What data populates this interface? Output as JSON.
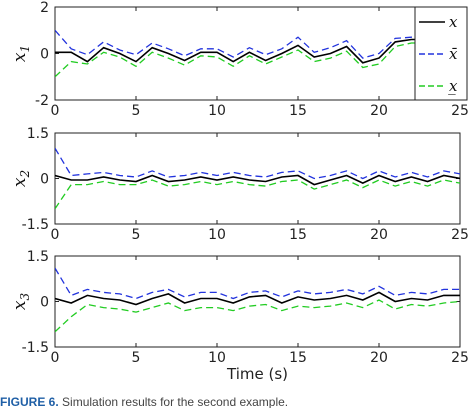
{
  "caption": {
    "label": "FIGURE 6.",
    "text": "Simulation results for the second example."
  },
  "colors": {
    "x": "#000000",
    "upper": "#2233dd",
    "lower": "#22cc22"
  },
  "chart_data": [
    {
      "type": "line",
      "ylabel": "x",
      "ylabel_sub": "1",
      "xlabel": "",
      "xlim": [
        0,
        25
      ],
      "ylim": [
        -2,
        2
      ],
      "xticks": [
        "0",
        "5",
        "10",
        "15",
        "20",
        "25"
      ],
      "yticks": [
        "-2",
        "0",
        "2"
      ],
      "x": [
        0,
        1,
        2,
        3,
        4,
        5,
        6,
        7,
        8,
        9,
        10,
        11,
        12,
        13,
        14,
        15,
        16,
        17,
        18,
        19,
        20,
        21,
        22,
        23,
        24,
        25
      ],
      "legend": {
        "position": "right",
        "entries": [
          "x",
          "x̄",
          "x̲"
        ]
      },
      "series": [
        {
          "name": "x",
          "color": "x",
          "dash": "solid",
          "values": [
            0.05,
            0.05,
            -0.35,
            0.25,
            0.0,
            -0.35,
            0.25,
            0.0,
            -0.3,
            0.05,
            0.05,
            -0.35,
            0.05,
            -0.3,
            0.0,
            0.35,
            -0.15,
            0.0,
            0.3,
            -0.4,
            -0.2,
            0.5,
            0.6,
            0.6,
            0.6,
            0.6
          ]
        },
        {
          "name": "x̄",
          "color": "upper",
          "dash": "dashed",
          "values": [
            1.0,
            0.2,
            -0.05,
            0.5,
            0.15,
            -0.05,
            0.45,
            0.2,
            -0.1,
            0.2,
            0.2,
            -0.15,
            0.25,
            -0.05,
            0.2,
            0.7,
            0.05,
            0.25,
            0.55,
            -0.2,
            0.0,
            0.65,
            0.7,
            0.7,
            0.7,
            0.7
          ]
        },
        {
          "name": "x̲",
          "color": "lower",
          "dash": "dashed",
          "values": [
            -1.0,
            -0.35,
            -0.45,
            0.05,
            -0.15,
            -0.55,
            0.05,
            -0.2,
            -0.5,
            -0.1,
            -0.15,
            -0.55,
            -0.1,
            -0.45,
            -0.15,
            0.15,
            -0.35,
            -0.2,
            0.1,
            -0.6,
            -0.45,
            0.3,
            0.45,
            0.45,
            0.45,
            0.45
          ]
        }
      ]
    },
    {
      "type": "line",
      "ylabel": "x",
      "ylabel_sub": "2",
      "xlabel": "",
      "xlim": [
        0,
        25
      ],
      "ylim": [
        -1.5,
        1.5
      ],
      "xticks": [
        "0",
        "5",
        "10",
        "15",
        "20",
        "25"
      ],
      "yticks": [
        "-1.5",
        "0",
        "1.5"
      ],
      "x": [
        0,
        1,
        2,
        3,
        4,
        5,
        6,
        7,
        8,
        9,
        10,
        11,
        12,
        13,
        14,
        15,
        16,
        17,
        18,
        19,
        20,
        21,
        22,
        23,
        24,
        25
      ],
      "series": [
        {
          "name": "x",
          "color": "x",
          "dash": "solid",
          "values": [
            0.1,
            -0.05,
            -0.05,
            0.05,
            -0.05,
            -0.1,
            0.1,
            -0.1,
            -0.05,
            0.05,
            -0.05,
            0.05,
            -0.05,
            -0.1,
            0.05,
            0.1,
            -0.2,
            -0.05,
            0.1,
            -0.15,
            0.1,
            -0.1,
            0.05,
            -0.1,
            0.1,
            0.0
          ]
        },
        {
          "name": "x̄",
          "color": "upper",
          "dash": "dashed",
          "values": [
            1.0,
            0.1,
            0.15,
            0.2,
            0.1,
            0.05,
            0.25,
            0.05,
            0.1,
            0.2,
            0.1,
            0.2,
            0.1,
            0.05,
            0.2,
            0.25,
            0.0,
            0.1,
            0.25,
            0.0,
            0.25,
            0.05,
            0.2,
            0.05,
            0.25,
            0.15
          ]
        },
        {
          "name": "x̲",
          "color": "lower",
          "dash": "dashed",
          "values": [
            -1.0,
            -0.2,
            -0.2,
            -0.1,
            -0.2,
            -0.2,
            -0.05,
            -0.25,
            -0.2,
            -0.1,
            -0.2,
            -0.1,
            -0.2,
            -0.25,
            -0.1,
            -0.05,
            -0.35,
            -0.2,
            -0.05,
            -0.3,
            -0.05,
            -0.25,
            -0.1,
            -0.25,
            -0.05,
            -0.15
          ]
        }
      ]
    },
    {
      "type": "line",
      "ylabel": "x",
      "ylabel_sub": "3",
      "xlabel": "Time (s)",
      "xlim": [
        0,
        25
      ],
      "ylim": [
        -1.5,
        1.5
      ],
      "xticks": [
        "0",
        "5",
        "10",
        "15",
        "20",
        "25"
      ],
      "yticks": [
        "-1.5",
        "0",
        "1.5"
      ],
      "x": [
        0,
        1,
        2,
        3,
        4,
        5,
        6,
        7,
        8,
        9,
        10,
        11,
        12,
        13,
        14,
        15,
        16,
        17,
        18,
        19,
        20,
        21,
        22,
        23,
        24,
        25
      ],
      "series": [
        {
          "name": "x",
          "color": "x",
          "dash": "solid",
          "values": [
            0.1,
            -0.05,
            0.2,
            0.1,
            0.05,
            -0.1,
            0.1,
            0.25,
            -0.05,
            0.1,
            0.1,
            -0.05,
            0.15,
            0.2,
            -0.05,
            0.15,
            0.05,
            0.1,
            0.2,
            0.05,
            0.3,
            0.0,
            0.1,
            0.05,
            0.2,
            0.2
          ]
        },
        {
          "name": "x̄",
          "color": "upper",
          "dash": "dashed",
          "values": [
            1.1,
            0.2,
            0.4,
            0.3,
            0.25,
            0.1,
            0.3,
            0.4,
            0.15,
            0.3,
            0.3,
            0.1,
            0.3,
            0.35,
            0.15,
            0.35,
            0.25,
            0.3,
            0.4,
            0.25,
            0.5,
            0.2,
            0.3,
            0.25,
            0.4,
            0.4
          ]
        },
        {
          "name": "x̲",
          "color": "lower",
          "dash": "dashed",
          "values": [
            -1.0,
            -0.5,
            -0.1,
            -0.2,
            -0.25,
            -0.35,
            -0.2,
            -0.05,
            -0.3,
            -0.2,
            -0.2,
            -0.3,
            -0.15,
            -0.1,
            -0.3,
            -0.15,
            -0.2,
            -0.15,
            -0.05,
            -0.2,
            0.05,
            -0.25,
            -0.1,
            -0.15,
            -0.05,
            0.0
          ]
        }
      ]
    }
  ]
}
